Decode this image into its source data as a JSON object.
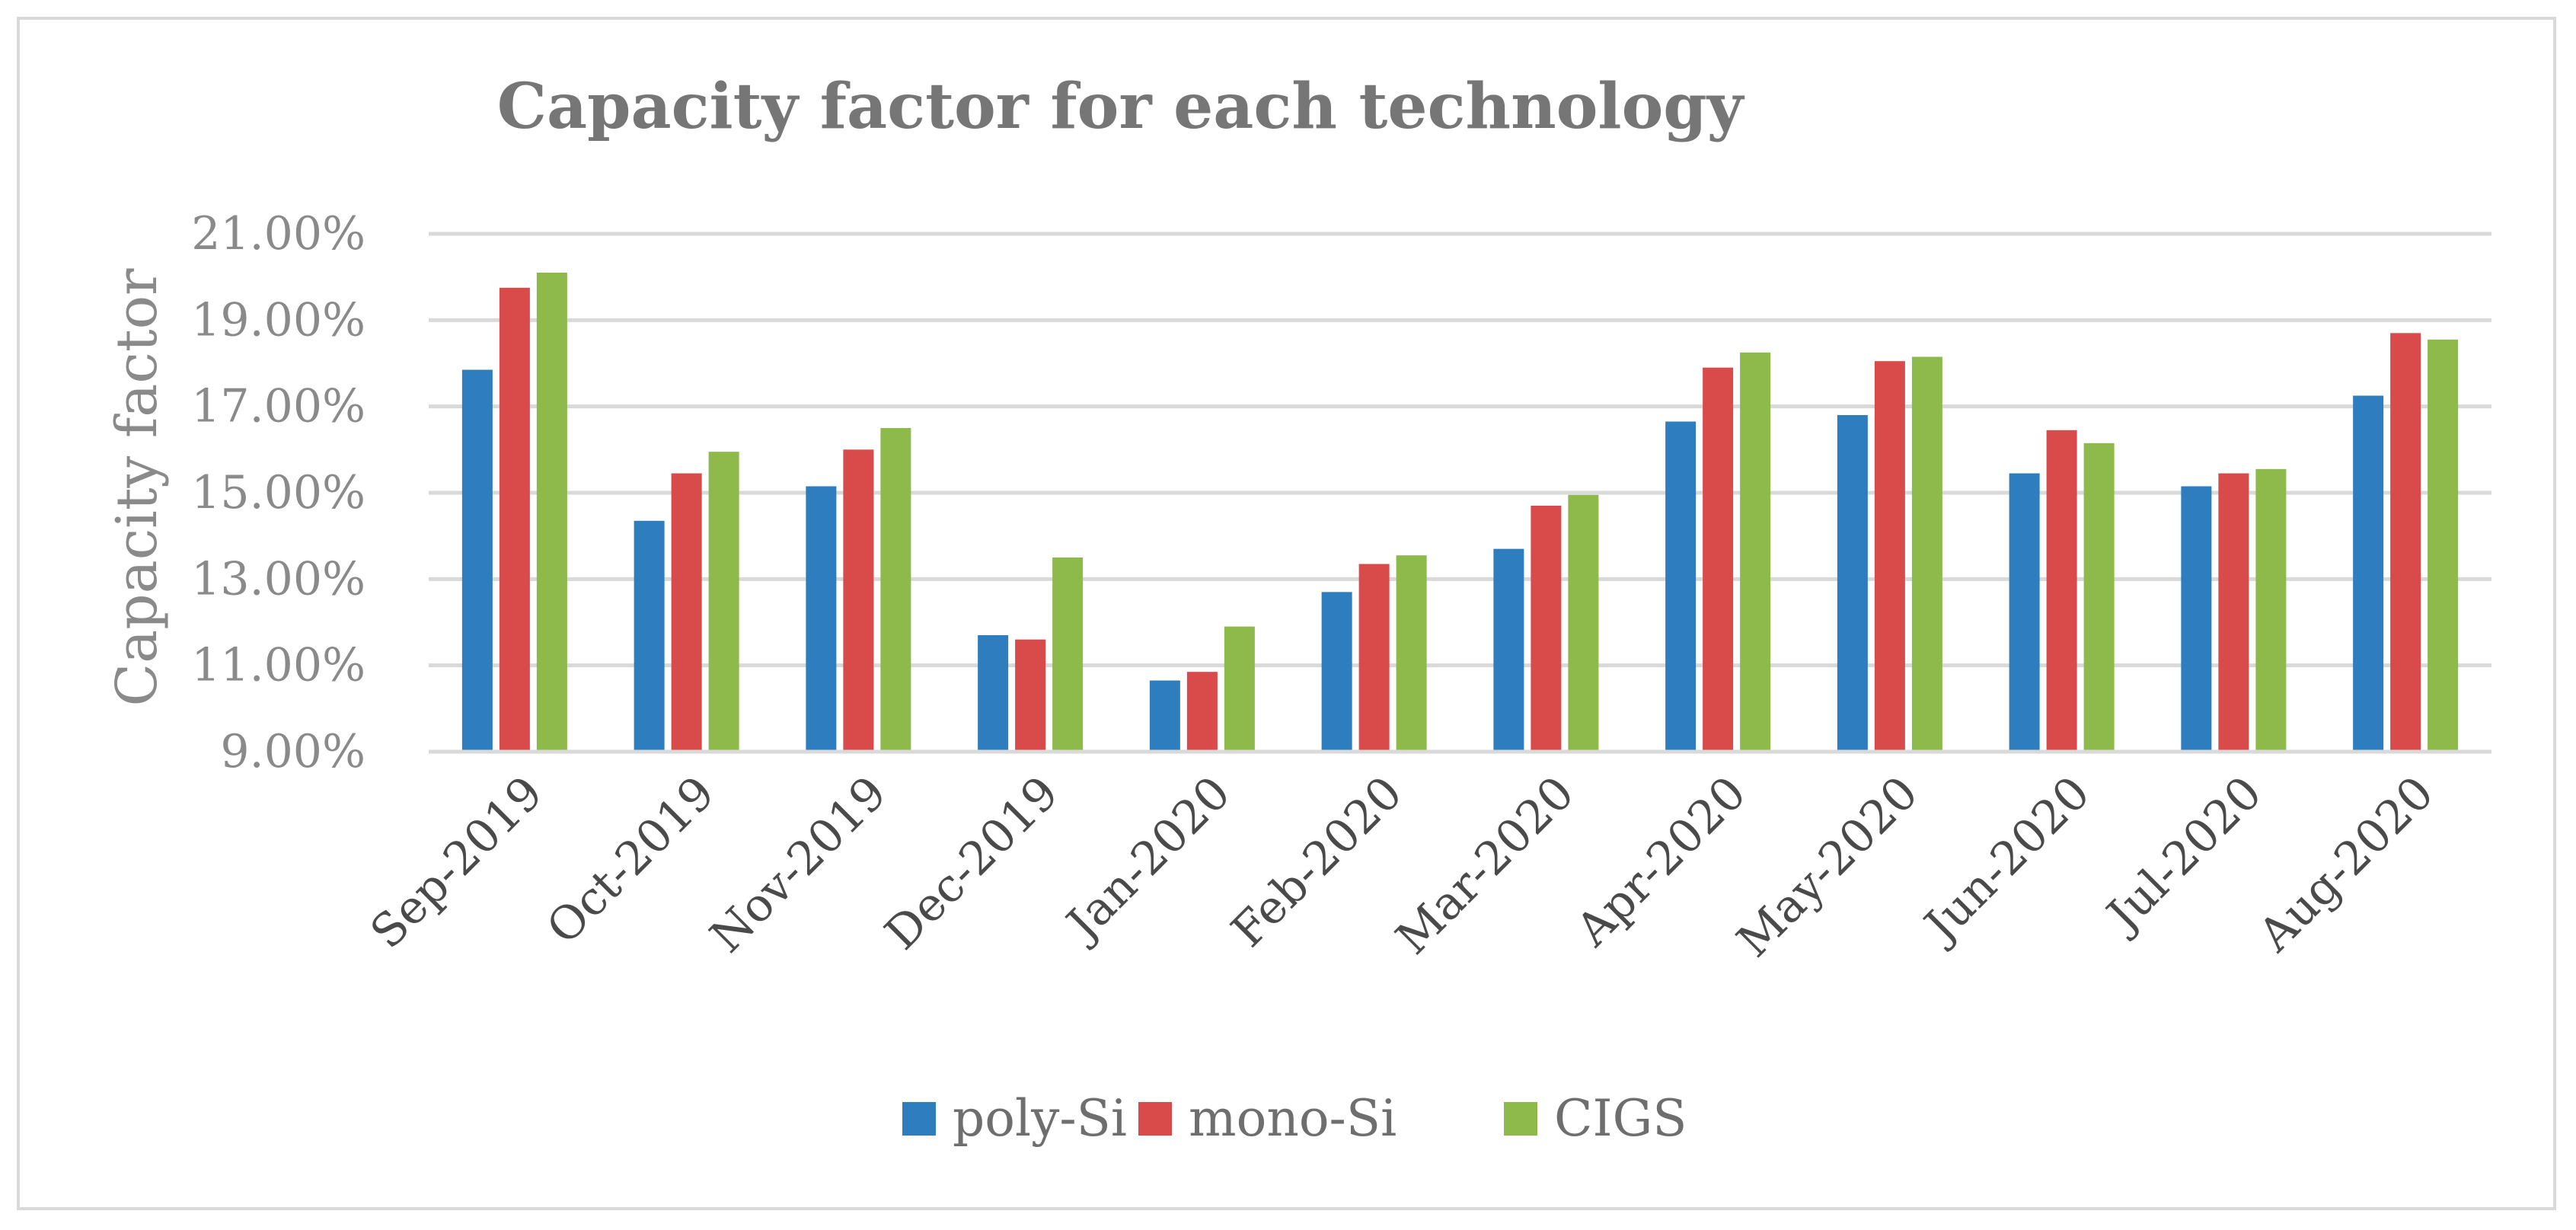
{
  "chart_data": {
    "type": "bar",
    "title": "Capacity factor for each technology",
    "xlabel": "",
    "ylabel": "Capacity factor",
    "ylim": [
      9.0,
      21.0
    ],
    "yticks": [
      9.0,
      11.0,
      13.0,
      15.0,
      17.0,
      19.0,
      21.0
    ],
    "ytick_labels": [
      "9.00%",
      "11.00%",
      "13.00%",
      "15.00%",
      "17.00%",
      "19.00%",
      "21.00%"
    ],
    "grid": true,
    "legend_position": "bottom",
    "categories": [
      "Sep-2019",
      "Oct-2019",
      "Nov-2019",
      "Dec-2019",
      "Jan-2020",
      "Feb-2020",
      "Mar-2020",
      "Apr-2020",
      "May-2020",
      "Jun-2020",
      "Jul-2020",
      "Aug-2020"
    ],
    "series": [
      {
        "name": "poly-Si",
        "color": "#2e7ebf",
        "values": [
          17.85,
          14.35,
          15.15,
          11.7,
          10.65,
          12.7,
          13.7,
          16.65,
          16.8,
          15.45,
          15.15,
          17.25
        ]
      },
      {
        "name": "mono-Si",
        "color": "#d94a4a",
        "values": [
          19.75,
          15.45,
          16.0,
          11.6,
          10.85,
          13.35,
          14.7,
          17.9,
          18.05,
          16.45,
          15.45,
          18.7
        ]
      },
      {
        "name": "CIGS",
        "color": "#8dba4a",
        "values": [
          20.1,
          15.95,
          16.5,
          13.5,
          11.9,
          13.55,
          14.95,
          18.25,
          18.15,
          16.15,
          15.55,
          18.55
        ]
      }
    ]
  }
}
